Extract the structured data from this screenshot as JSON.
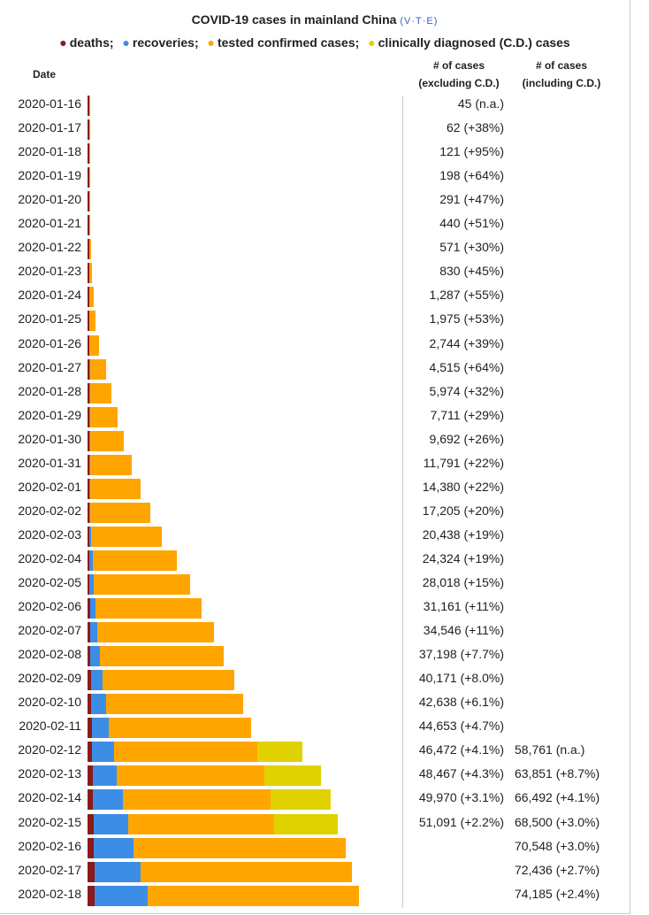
{
  "chart_data": {
    "type": "bar",
    "orientation": "horizontal",
    "stacked": true,
    "title": "COVID-19 cases in mainland China",
    "title_links": [
      "V",
      "T",
      "E"
    ],
    "legend": [
      {
        "label": "deaths",
        "color": "#8b1a1a"
      },
      {
        "label": "recoveries",
        "color": "#3c8de6"
      },
      {
        "label": "tested confirmed cases",
        "color": "#ffa500"
      },
      {
        "label": "clinically diagnosed (C.D.) cases",
        "color": "#e0d200"
      }
    ],
    "headers": {
      "date": "Date",
      "excl_line1": "# of cases",
      "excl_line2": "(excluding C.D.)",
      "incl_line1": "# of cases",
      "incl_line2": "(including C.D.)"
    },
    "xmax": 80000,
    "rows": [
      {
        "date": "2020-01-16",
        "deaths": 2,
        "recoveries": 0,
        "confirmed": 45,
        "cd": 0,
        "excl": "45 (n.a.)",
        "incl": ""
      },
      {
        "date": "2020-01-17",
        "deaths": 2,
        "recoveries": 0,
        "confirmed": 62,
        "cd": 0,
        "excl": "62 (+38%)",
        "incl": ""
      },
      {
        "date": "2020-01-18",
        "deaths": 3,
        "recoveries": 0,
        "confirmed": 121,
        "cd": 0,
        "excl": "121 (+95%)",
        "incl": ""
      },
      {
        "date": "2020-01-19",
        "deaths": 3,
        "recoveries": 0,
        "confirmed": 198,
        "cd": 0,
        "excl": "198 (+64%)",
        "incl": ""
      },
      {
        "date": "2020-01-20",
        "deaths": 6,
        "recoveries": 0,
        "confirmed": 291,
        "cd": 0,
        "excl": "291 (+47%)",
        "incl": ""
      },
      {
        "date": "2020-01-21",
        "deaths": 9,
        "recoveries": 0,
        "confirmed": 440,
        "cd": 0,
        "excl": "440 (+51%)",
        "incl": ""
      },
      {
        "date": "2020-01-22",
        "deaths": 17,
        "recoveries": 0,
        "confirmed": 571,
        "cd": 0,
        "excl": "571 (+30%)",
        "incl": ""
      },
      {
        "date": "2020-01-23",
        "deaths": 25,
        "recoveries": 0,
        "confirmed": 830,
        "cd": 0,
        "excl": "830 (+45%)",
        "incl": ""
      },
      {
        "date": "2020-01-24",
        "deaths": 41,
        "recoveries": 0,
        "confirmed": 1287,
        "cd": 0,
        "excl": "1,287 (+55%)",
        "incl": ""
      },
      {
        "date": "2020-01-25",
        "deaths": 56,
        "recoveries": 0,
        "confirmed": 1975,
        "cd": 0,
        "excl": "1,975 (+53%)",
        "incl": ""
      },
      {
        "date": "2020-01-26",
        "deaths": 80,
        "recoveries": 0,
        "confirmed": 2744,
        "cd": 0,
        "excl": "2,744 (+39%)",
        "incl": ""
      },
      {
        "date": "2020-01-27",
        "deaths": 106,
        "recoveries": 60,
        "confirmed": 4515,
        "cd": 0,
        "excl": "4,515 (+64%)",
        "incl": ""
      },
      {
        "date": "2020-01-28",
        "deaths": 132,
        "recoveries": 103,
        "confirmed": 5974,
        "cd": 0,
        "excl": "5,974 (+32%)",
        "incl": ""
      },
      {
        "date": "2020-01-29",
        "deaths": 170,
        "recoveries": 124,
        "confirmed": 7711,
        "cd": 0,
        "excl": "7,711 (+29%)",
        "incl": ""
      },
      {
        "date": "2020-01-30",
        "deaths": 213,
        "recoveries": 171,
        "confirmed": 9692,
        "cd": 0,
        "excl": "9,692 (+26%)",
        "incl": ""
      },
      {
        "date": "2020-01-31",
        "deaths": 259,
        "recoveries": 243,
        "confirmed": 11791,
        "cd": 0,
        "excl": "11,791 (+22%)",
        "incl": ""
      },
      {
        "date": "2020-02-01",
        "deaths": 304,
        "recoveries": 328,
        "confirmed": 14380,
        "cd": 0,
        "excl": "14,380 (+22%)",
        "incl": ""
      },
      {
        "date": "2020-02-02",
        "deaths": 361,
        "recoveries": 475,
        "confirmed": 17205,
        "cd": 0,
        "excl": "17,205 (+20%)",
        "incl": ""
      },
      {
        "date": "2020-02-03",
        "deaths": 425,
        "recoveries": 632,
        "confirmed": 20438,
        "cd": 0,
        "excl": "20,438 (+19%)",
        "incl": ""
      },
      {
        "date": "2020-02-04",
        "deaths": 490,
        "recoveries": 892,
        "confirmed": 24324,
        "cd": 0,
        "excl": "24,324 (+19%)",
        "incl": ""
      },
      {
        "date": "2020-02-05",
        "deaths": 563,
        "recoveries": 1153,
        "confirmed": 28018,
        "cd": 0,
        "excl": "28,018 (+15%)",
        "incl": ""
      },
      {
        "date": "2020-02-06",
        "deaths": 636,
        "recoveries": 1540,
        "confirmed": 31161,
        "cd": 0,
        "excl": "31,161 (+11%)",
        "incl": ""
      },
      {
        "date": "2020-02-07",
        "deaths": 722,
        "recoveries": 2050,
        "confirmed": 34546,
        "cd": 0,
        "excl": "34,546 (+11%)",
        "incl": ""
      },
      {
        "date": "2020-02-08",
        "deaths": 811,
        "recoveries": 2649,
        "confirmed": 37198,
        "cd": 0,
        "excl": "37,198 (+7.7%)",
        "incl": ""
      },
      {
        "date": "2020-02-09",
        "deaths": 908,
        "recoveries": 3281,
        "confirmed": 40171,
        "cd": 0,
        "excl": "40,171 (+8.0%)",
        "incl": ""
      },
      {
        "date": "2020-02-10",
        "deaths": 1016,
        "recoveries": 3996,
        "confirmed": 42638,
        "cd": 0,
        "excl": "42,638 (+6.1%)",
        "incl": ""
      },
      {
        "date": "2020-02-11",
        "deaths": 1113,
        "recoveries": 4740,
        "confirmed": 44653,
        "cd": 0,
        "excl": "44,653 (+4.7%)",
        "incl": ""
      },
      {
        "date": "2020-02-12",
        "deaths": 1259,
        "recoveries": 5911,
        "confirmed": 46472,
        "cd": 12289,
        "excl": "46,472 (+4.1%)",
        "incl": "58,761 (n.a.)"
      },
      {
        "date": "2020-02-13",
        "deaths": 1380,
        "recoveries": 6723,
        "confirmed": 48467,
        "cd": 15384,
        "excl": "48,467 (+4.3%)",
        "incl": "63,851 (+8.7%)"
      },
      {
        "date": "2020-02-14",
        "deaths": 1523,
        "recoveries": 8096,
        "confirmed": 49970,
        "cd": 16522,
        "excl": "49,970 (+3.1%)",
        "incl": "66,492 (+4.1%)"
      },
      {
        "date": "2020-02-15",
        "deaths": 1665,
        "recoveries": 9419,
        "confirmed": 51091,
        "cd": 17409,
        "excl": "51,091 (+2.2%)",
        "incl": "68,500 (+3.0%)"
      },
      {
        "date": "2020-02-16",
        "deaths": 1770,
        "recoveries": 10844,
        "confirmed": 70548,
        "cd": 0,
        "excl": "",
        "incl": "70,548 (+3.0%)"
      },
      {
        "date": "2020-02-17",
        "deaths": 1868,
        "recoveries": 12552,
        "confirmed": 72436,
        "cd": 0,
        "excl": "",
        "incl": "72,436 (+2.7%)"
      },
      {
        "date": "2020-02-18",
        "deaths": 2004,
        "recoveries": 14376,
        "confirmed": 74185,
        "cd": 0,
        "excl": "",
        "incl": "74,185 (+2.4%)"
      }
    ]
  }
}
